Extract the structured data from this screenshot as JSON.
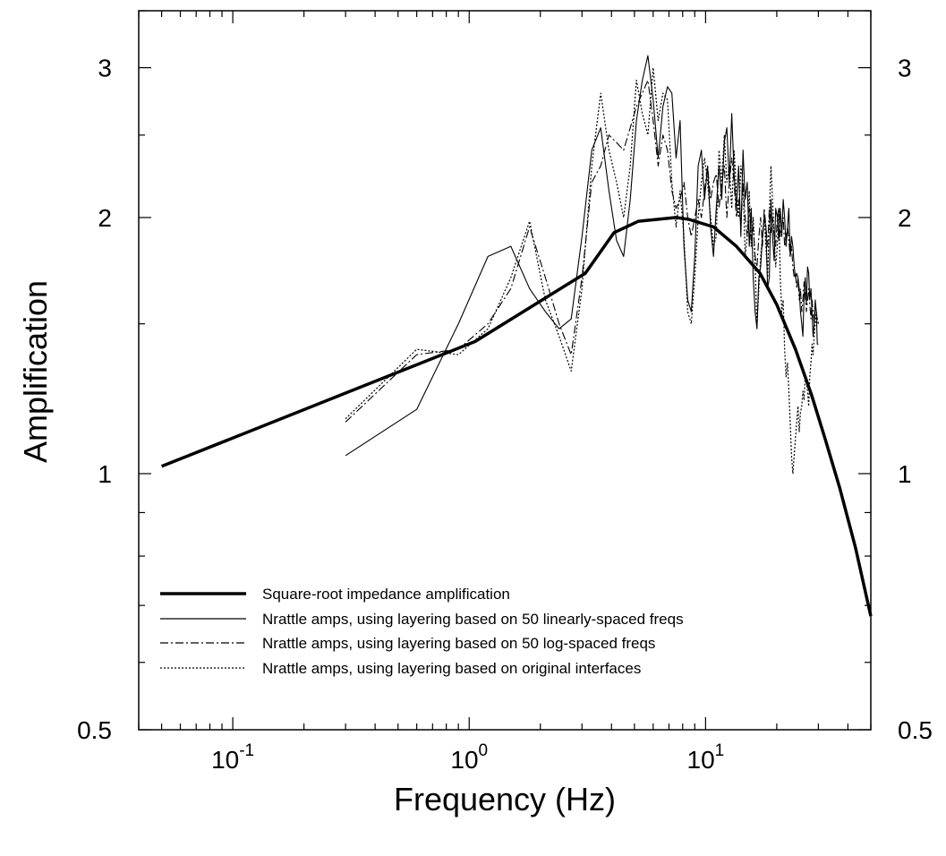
{
  "chart_data": {
    "type": "line",
    "title": "",
    "xlabel": "Frequency (Hz)",
    "ylabel": "Amplification",
    "x_scale": "log",
    "y_scale": "log",
    "xlim": [
      0.04,
      50
    ],
    "ylim": [
      0.5,
      3.5
    ],
    "grid": false,
    "legend_position": "bottom-left",
    "x_ticks": [
      {
        "value": 0.1,
        "base": "10",
        "exp": "-1"
      },
      {
        "value": 1,
        "base": "10",
        "exp": "0"
      },
      {
        "value": 10,
        "base": "10",
        "exp": "1"
      }
    ],
    "y_ticks": [
      {
        "value": 0.5,
        "label": "0.5"
      },
      {
        "value": 1,
        "label": "1"
      },
      {
        "value": 2,
        "label": "2"
      },
      {
        "value": 3,
        "label": "3"
      }
    ],
    "series": [
      {
        "name": "Square-root impedance amplification",
        "style": "thick-solid",
        "x": [
          0.05,
          1.06,
          3.1,
          4.1,
          5.2,
          7.5,
          8.5,
          10.8,
          13.5,
          17.0,
          20.0,
          24.0,
          28.0,
          32.0,
          37.0,
          43.0,
          50.0
        ],
        "y": [
          1.02,
          1.43,
          1.72,
          1.92,
          1.98,
          2.0,
          1.99,
          1.95,
          1.85,
          1.72,
          1.58,
          1.4,
          1.24,
          1.1,
          0.96,
          0.82,
          0.68
        ]
      },
      {
        "name": "Nrattle amps, using layering based on 50 linearly-spaced freqs",
        "style": "thin-solid",
        "x": [
          0.3,
          0.6,
          0.9,
          1.2,
          1.5,
          1.8,
          2.1,
          2.4,
          2.7,
          3.0,
          3.3,
          3.6,
          3.9,
          4.2,
          4.5,
          4.8,
          5.1,
          5.4,
          5.7,
          6.0,
          6.3,
          6.6,
          6.9,
          7.2,
          7.5,
          7.8,
          8.1,
          8.4,
          8.7,
          9.0,
          9.3,
          9.6,
          9.9,
          10.2,
          10.5,
          10.8,
          11.1,
          11.4,
          11.7,
          12.0,
          12.3,
          12.6,
          12.9,
          13.2,
          13.5,
          13.8,
          14.1,
          14.4,
          14.7,
          15.0,
          15.3,
          15.6,
          15.9,
          16.2,
          16.5,
          16.8,
          17.1,
          17.4,
          17.7,
          18.0,
          18.3,
          18.6,
          18.9,
          19.2,
          19.5,
          19.8,
          20.1,
          20.4,
          20.7,
          21.0,
          21.3,
          21.6,
          21.9,
          22.2,
          22.5,
          22.8,
          23.1,
          23.4,
          23.7,
          24.0,
          24.3,
          24.6,
          24.9,
          25.2,
          25.5,
          25.8,
          26.1,
          26.4,
          26.7,
          27.0,
          27.3,
          27.6,
          27.9,
          28.2,
          28.5,
          28.8,
          29.1,
          29.4,
          29.7,
          30.0
        ],
        "y": [
          1.05,
          1.19,
          1.5,
          1.8,
          1.85,
          1.65,
          1.55,
          1.48,
          1.52,
          1.9,
          2.4,
          2.55,
          2.15,
          1.88,
          1.8,
          2.1,
          2.6,
          2.9,
          3.1,
          2.75,
          2.35,
          2.7,
          2.85,
          2.8,
          2.35,
          2.6,
          1.85,
          1.6,
          1.55,
          1.8,
          2.3,
          2.4,
          2.1,
          2.3,
          1.95,
          1.8,
          2.05,
          2.3,
          2.1,
          2.45,
          2.55,
          2.2,
          2.65,
          2.25,
          2.05,
          2.3,
          1.9,
          2.4,
          2.1,
          2.2,
          1.85,
          2.05,
          1.7,
          1.55,
          1.48,
          1.7,
          1.75,
          1.9,
          2.0,
          1.95,
          1.65,
          1.7,
          2.1,
          1.9,
          1.78,
          2.05,
          2.0,
          1.88,
          2.05,
          1.9,
          2.1,
          2.0,
          1.85,
          1.95,
          2.05,
          1.8,
          1.9,
          1.85,
          1.75,
          1.7,
          1.72,
          1.7,
          1.65,
          1.55,
          1.5,
          1.45,
          1.62,
          1.7,
          1.58,
          1.75,
          1.72,
          1.6,
          1.65,
          1.55,
          1.45,
          1.5,
          1.6,
          1.55,
          1.42,
          1.42
        ]
      },
      {
        "name": "Nrattle amps, using layering based on 50 log-spaced freqs",
        "style": "dash-dot",
        "x": [
          0.3,
          0.6,
          0.9,
          1.2,
          1.5,
          1.8,
          2.1,
          2.4,
          2.7,
          3.0,
          3.3,
          3.6,
          3.9,
          4.2,
          4.5,
          4.8,
          5.1,
          5.4,
          5.7,
          6.0,
          6.3,
          6.6,
          6.9,
          7.2,
          7.5,
          7.8,
          8.1,
          8.4,
          8.7,
          9.0,
          9.3,
          9.6,
          9.9,
          10.2,
          10.5,
          10.8,
          11.1,
          11.4,
          11.7,
          12.0,
          12.3,
          12.6,
          12.9,
          13.2,
          13.5,
          13.8,
          14.1,
          14.4,
          14.7,
          15.0,
          15.3,
          15.6,
          15.9,
          16.2,
          16.5,
          16.8,
          17.1,
          17.4,
          17.7,
          18.0,
          18.3,
          18.6,
          18.9,
          19.2,
          19.5,
          19.8,
          20.1,
          20.4,
          20.7,
          21.0,
          21.3,
          21.6,
          21.9,
          22.2,
          22.5,
          22.8,
          23.1,
          23.4,
          23.7,
          24.0,
          24.3,
          24.6,
          24.9,
          25.2,
          25.5,
          25.8,
          26.1,
          26.4,
          26.7,
          27.0,
          27.3,
          27.6,
          27.9,
          28.2,
          28.5,
          28.8,
          29.1,
          29.4,
          29.7,
          30.0
        ],
        "y": [
          1.15,
          1.38,
          1.4,
          1.5,
          1.65,
          1.95,
          1.7,
          1.5,
          1.38,
          1.7,
          2.2,
          2.3,
          2.5,
          2.45,
          2.4,
          2.55,
          2.7,
          2.8,
          2.9,
          2.6,
          2.3,
          2.5,
          2.4,
          2.15,
          2.05,
          2.1,
          2.2,
          2.0,
          1.9,
          2.0,
          2.1,
          2.0,
          2.15,
          2.3,
          2.1,
          2.2,
          2.25,
          2.05,
          2.2,
          2.3,
          2.0,
          2.2,
          2.35,
          2.2,
          2.0,
          2.1,
          1.95,
          2.2,
          2.0,
          1.9,
          2.05,
          1.88,
          1.95,
          1.8,
          1.75,
          1.9,
          2.0,
          1.85,
          2.05,
          1.95,
          1.85,
          2.05,
          1.92,
          2.0,
          1.9,
          1.85,
          2.0,
          2.05,
          1.9,
          1.95,
          2.0,
          1.85,
          1.9,
          1.95,
          1.88,
          1.8,
          1.85,
          1.75,
          1.7,
          1.72,
          1.65,
          1.7,
          1.6,
          1.65,
          1.55,
          1.6,
          1.68,
          1.62,
          1.55,
          1.6,
          1.65,
          1.58,
          1.52,
          1.6,
          1.55,
          1.5,
          1.58,
          1.55,
          1.52,
          1.5
        ]
      },
      {
        "name": "Nrattle amps, using layering based on original interfaces",
        "style": "dotted",
        "x": [
          0.3,
          0.6,
          0.9,
          1.2,
          1.5,
          1.8,
          2.1,
          2.4,
          2.7,
          3.0,
          3.3,
          3.6,
          3.9,
          4.2,
          4.5,
          4.8,
          5.1,
          5.4,
          5.7,
          6.0,
          6.3,
          6.6,
          6.9,
          7.2,
          7.5,
          7.8,
          8.1,
          8.4,
          8.7,
          9.0,
          9.3,
          9.6,
          9.9,
          10.2,
          10.5,
          10.8,
          11.1,
          11.4,
          11.7,
          12.0,
          12.3,
          12.6,
          12.9,
          13.2,
          13.5,
          13.8,
          14.1,
          14.4,
          14.7,
          15.0,
          15.3,
          15.6,
          15.9,
          16.2,
          16.5,
          16.8,
          17.1,
          17.4,
          17.7,
          18.0,
          18.3,
          18.6,
          18.9,
          19.2,
          19.5,
          19.8,
          20.1,
          20.4,
          20.7,
          21.0,
          21.3,
          21.6,
          21.9,
          22.2,
          22.5,
          22.8,
          23.1,
          23.4,
          23.7,
          24.0,
          24.3,
          24.6,
          24.9,
          25.2,
          25.5,
          25.8,
          26.1,
          26.4,
          26.7,
          27.0,
          27.3,
          27.6,
          27.9,
          28.2,
          28.5,
          28.8,
          29.1,
          29.4,
          29.7,
          30.0
        ],
        "y": [
          1.16,
          1.4,
          1.38,
          1.48,
          1.7,
          1.98,
          1.6,
          1.45,
          1.32,
          1.65,
          2.3,
          2.8,
          2.4,
          2.2,
          2.0,
          2.3,
          2.9,
          2.65,
          2.5,
          3.0,
          2.6,
          2.8,
          2.75,
          2.2,
          1.95,
          2.15,
          1.9,
          1.55,
          1.5,
          1.7,
          2.0,
          2.2,
          2.35,
          2.2,
          2.0,
          1.85,
          1.9,
          2.4,
          2.2,
          2.5,
          2.2,
          2.3,
          2.05,
          2.4,
          2.15,
          2.0,
          2.3,
          2.2,
          1.8,
          1.9,
          2.15,
          1.85,
          2.0,
          1.75,
          1.5,
          1.65,
          1.8,
          1.9,
          2.0,
          1.85,
          1.7,
          2.0,
          2.3,
          2.1,
          1.9,
          1.75,
          1.85,
          2.05,
          1.7,
          1.55,
          1.6,
          1.4,
          1.3,
          1.35,
          1.25,
          1.15,
          1.05,
          1.0,
          1.05,
          1.1,
          1.15,
          1.2,
          1.12,
          1.18,
          1.2,
          1.25,
          1.22,
          1.3,
          1.28,
          1.25,
          1.2,
          1.3,
          1.35,
          1.42,
          1.38,
          1.45,
          1.5,
          1.55,
          1.52,
          1.5
        ]
      }
    ]
  }
}
